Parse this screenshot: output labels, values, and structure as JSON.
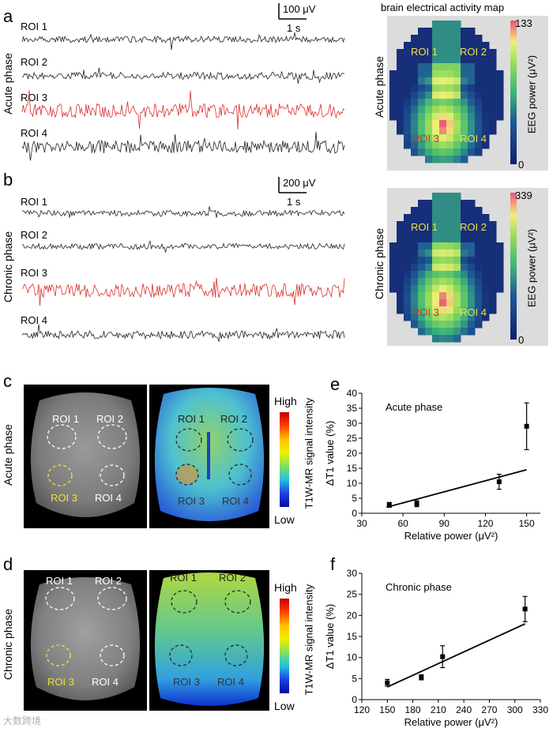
{
  "panel_a": {
    "label": "a",
    "phase_label": "Acute phase",
    "scale_amplitude": "100 μV",
    "scale_time": "1 s",
    "traces": [
      {
        "label": "ROI 1",
        "color": "#222222"
      },
      {
        "label": "ROI 2",
        "color": "#222222"
      },
      {
        "label": "ROI 3",
        "color": "#d9302b"
      },
      {
        "label": "ROI 4",
        "color": "#222222"
      }
    ]
  },
  "panel_b": {
    "label": "b",
    "phase_label": "Chronic phase",
    "scale_amplitude": "200 μV",
    "scale_time": "1 s",
    "traces": [
      {
        "label": "ROI 1",
        "color": "#222222"
      },
      {
        "label": "ROI 2",
        "color": "#222222"
      },
      {
        "label": "ROI 3",
        "color": "#d9302b"
      },
      {
        "label": "ROI 4",
        "color": "#222222"
      }
    ]
  },
  "map": {
    "title": "brain electrical activity map",
    "acute_phase_label": "Acute phase",
    "chronic_phase_label": "Chronic phase",
    "acute_max": "133",
    "chronic_max": "339",
    "min": "0",
    "colorbar_label": "EEG power (μV²)",
    "roi_labels": [
      "ROI 1",
      "ROI 2",
      "ROI 3",
      "ROI 4"
    ],
    "roi_color": "#f0e040"
  },
  "panel_c": {
    "label": "c",
    "phase_label": "Acute phase",
    "roi_labels": [
      "ROI 1",
      "ROI 2",
      "ROI 3",
      "ROI 4"
    ],
    "high": "High",
    "low": "Low",
    "colorbar_label": "T1W-MR signal intensity"
  },
  "panel_d": {
    "label": "d",
    "phase_label": "Chronic phase",
    "roi_labels": [
      "ROI 1",
      "ROI 2",
      "ROI 3",
      "ROI 4"
    ],
    "high": "High",
    "low": "Low",
    "colorbar_label": "T1W-MR signal intensity"
  },
  "watermark": "大数跨境",
  "chart_data": [
    {
      "panel": "e",
      "type": "scatter",
      "title": "Acute phase",
      "xlabel": "Relative power (μV²)",
      "ylabel": "ΔT1 value (%)",
      "xlim": [
        30,
        160
      ],
      "ylim": [
        0,
        40
      ],
      "xticks": [
        30,
        60,
        90,
        120,
        150
      ],
      "yticks": [
        0,
        5,
        10,
        15,
        20,
        25,
        30,
        35,
        40
      ],
      "points": [
        {
          "x": 50,
          "y": 2.8,
          "err": 0.8
        },
        {
          "x": 70,
          "y": 3.2,
          "err": 1.0
        },
        {
          "x": 130,
          "y": 10.5,
          "err": 2.5
        },
        {
          "x": 150,
          "y": 29,
          "err": 7.8
        }
      ],
      "fit_line": [
        [
          48,
          2.0
        ],
        [
          150,
          14.5
        ]
      ]
    },
    {
      "panel": "f",
      "type": "scatter",
      "title": "Chronic phase",
      "xlabel": "Relative power (μV²)",
      "ylabel": "ΔT1 value (%)",
      "xlim": [
        120,
        330
      ],
      "ylim": [
        0,
        30
      ],
      "xticks": [
        120,
        150,
        180,
        210,
        240,
        270,
        300,
        330
      ],
      "yticks": [
        0,
        5,
        10,
        15,
        20,
        25,
        30
      ],
      "points": [
        {
          "x": 150,
          "y": 4.0,
          "err": 0.8
        },
        {
          "x": 190,
          "y": 5.3,
          "err": 0.6
        },
        {
          "x": 215,
          "y": 10.2,
          "err": 2.6
        },
        {
          "x": 312,
          "y": 21.5,
          "err": 3.0
        }
      ],
      "fit_line": [
        [
          150,
          3.0
        ],
        [
          312,
          18.0
        ]
      ]
    }
  ]
}
